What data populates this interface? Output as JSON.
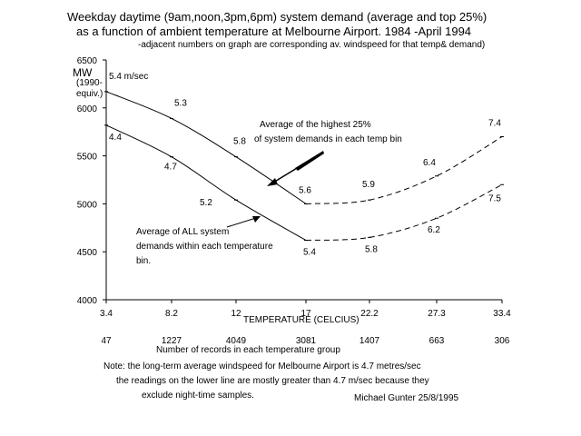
{
  "header": {
    "title_line1": "Weekday daytime (9am,noon,3pm,6pm) system demand (average and top 25%)",
    "title_line2": "as a function of ambient temperature at Melbourne Airport.  1984 -April 1994",
    "subtitle": "-adjacent numbers on graph are corresponding av. windspeed for that temp& demand)"
  },
  "axes": {
    "ylabel": "MW",
    "yunits": "(1990-equiv.)",
    "xlabel": "TEMPERATURE (CELCIUS)"
  },
  "records_label": "Number of records in each temperature group",
  "notes": {
    "line1": "Note: the long-term average windspeed for Melbourne Airport is 4.7 metres/sec",
    "line2": "the readings on the lower line are mostly greater than 4.7 m/sec because they",
    "line3": "exclude night-time samples.",
    "signature": "Michael Gunter     25/8/1995"
  },
  "chart_data": {
    "type": "line",
    "x_ticks": [
      "3.4",
      "8.2",
      "12",
      "17",
      "22.2",
      "27.3",
      "33.4"
    ],
    "x_tick_values": [
      3.4,
      8.2,
      12,
      17,
      22.2,
      27.3,
      33.4
    ],
    "y_ticks": [
      "4000",
      "4500",
      "5000",
      "5500",
      "6000",
      "6500"
    ],
    "y_tick_values": [
      4000,
      4500,
      5000,
      5500,
      6000,
      6500
    ],
    "xlim": [
      3.4,
      33.4
    ],
    "ylim": [
      4000,
      6500
    ],
    "record_counts": [
      "47",
      "1227",
      "4049",
      "3081",
      "1407",
      "663",
      "306"
    ],
    "series": [
      {
        "name": "Average of the highest 25% of system demands in each temp bin",
        "x": [
          3.4,
          8.2,
          12,
          17,
          22.2,
          27.3,
          33.4
        ],
        "values": [
          6170,
          5890,
          5490,
          5000,
          5040,
          5290,
          5700
        ],
        "windspeed_labels": [
          "5.4 m/sec",
          "5.3",
          "5.8",
          "5.6",
          "5.9",
          "6.4",
          "7.4"
        ]
      },
      {
        "name": "Average of ALL system demands within each temperature bin.",
        "x": [
          3.4,
          8.2,
          12,
          17,
          22.2,
          27.3,
          33.4
        ],
        "values": [
          5820,
          5490,
          5040,
          4620,
          4650,
          4850,
          5200
        ],
        "windspeed_labels": [
          "4.4",
          "4.7",
          "5.2",
          "5.4",
          "5.8",
          "6.2",
          "7.5"
        ]
      }
    ],
    "annotations": [
      "Average of the highest 25%",
      "of system demands in each temp bin",
      "Average of ALL system",
      "demands within each temperature",
      "bin."
    ],
    "grid": false,
    "legend": "none"
  }
}
